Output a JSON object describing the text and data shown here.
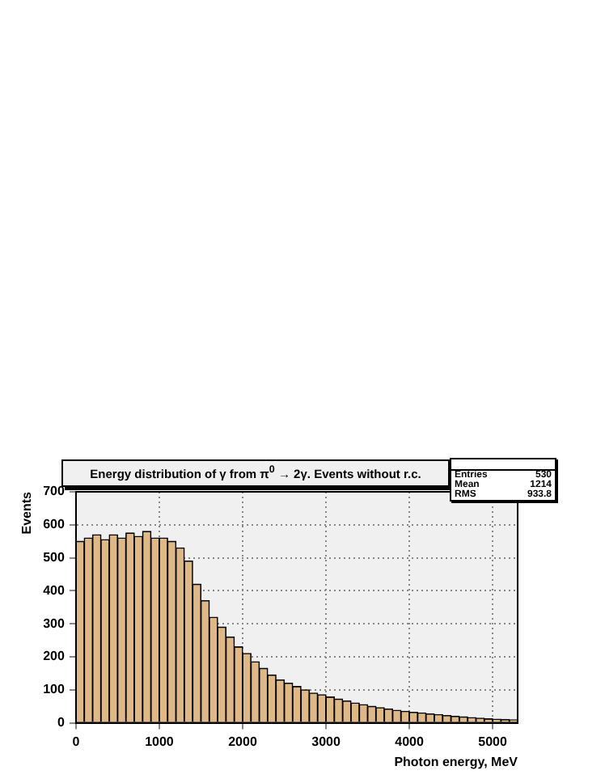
{
  "chart_data": {
    "type": "histogram",
    "title": "Energy distribution of γ from π$^{0}$ → 2γ. Events without r.c.",
    "xlabel": "Photon energy, MeV",
    "ylabel": "Events",
    "bins": [
      0,
      100,
      200,
      300,
      400,
      500,
      600,
      700,
      800,
      900,
      1000,
      1100,
      1200,
      1300,
      1400,
      1500,
      1600,
      1700,
      1800,
      1900,
      2000,
      2100,
      2200,
      2300,
      2400,
      2500,
      2600,
      2700,
      2800,
      2900,
      3000,
      3100,
      3200,
      3300,
      3400,
      3500,
      3600,
      3700,
      3800,
      3900,
      4000,
      4100,
      4200,
      4300,
      4400,
      4500,
      4600,
      4700,
      4800,
      4900,
      5000,
      5100,
      5200,
      5300
    ],
    "values": [
      550,
      560,
      570,
      555,
      570,
      560,
      575,
      565,
      580,
      560,
      560,
      550,
      530,
      490,
      420,
      370,
      320,
      290,
      260,
      230,
      210,
      185,
      165,
      145,
      130,
      120,
      110,
      100,
      90,
      85,
      78,
      72,
      66,
      60,
      55,
      50,
      46,
      42,
      38,
      35,
      32,
      30,
      27,
      25,
      22,
      20,
      18,
      16,
      14,
      12,
      11,
      10,
      9
    ],
    "color": "#deb887",
    "xlim": [
      0,
      5300
    ],
    "xticks": [
      0,
      1000,
      2000,
      3000,
      4000,
      5000
    ],
    "ylim": [
      0,
      700
    ],
    "yticks": [
      0,
      100,
      200,
      300,
      400,
      500,
      600,
      700
    ],
    "grid": true,
    "annotations": [
      "Entries 530",
      "Mean 1214",
      "RMS 933.8"
    ]
  }
}
